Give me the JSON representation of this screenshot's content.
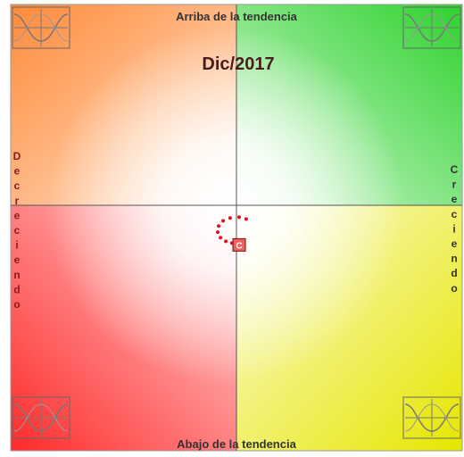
{
  "chart_data": {
    "type": "scatter",
    "title": "Dic/2017",
    "top_label": "Arriba de la tendencia",
    "bottom_label": "Abajo de la tendencia",
    "left_label": "Decreciendo",
    "right_label": "Creciendo",
    "marker_label": "C",
    "color": "#e0101a",
    "x": [
      0.043,
      0.012,
      -0.028,
      -0.059,
      -0.079,
      -0.083,
      -0.071,
      -0.047,
      -0.02,
      0.012
    ],
    "values": [
      -0.067,
      -0.058,
      -0.062,
      -0.076,
      -0.102,
      -0.133,
      -0.16,
      -0.178,
      -0.187,
      -0.196
    ],
    "xlim": [
      -1,
      1
    ],
    "ylim": [
      -1.22,
      1
    ]
  }
}
